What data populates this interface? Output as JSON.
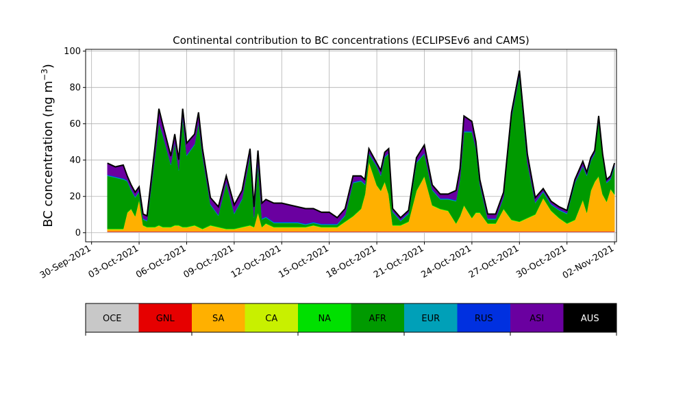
{
  "chart_data": {
    "type": "area",
    "title": "Continental contribution to BC concentrations (ECLIPSEv6 and CAMS)",
    "ylabel": "BC concentration (ng m",
    "ylabel_sup": "−3",
    "ylabel_close": ")",
    "ylim": [
      -5,
      101
    ],
    "yticks": [
      0,
      20,
      40,
      60,
      80,
      100
    ],
    "xlim": [
      "2021-09-29 15:00",
      "2021-11-02 03:00"
    ],
    "xticks": [
      "2021-09-30",
      "2021-10-03",
      "2021-10-06",
      "2021-10-09",
      "2021-10-12",
      "2021-10-15",
      "2021-10-18",
      "2021-10-21",
      "2021-10-24",
      "2021-10-27",
      "2021-10-30",
      "2021-11-02"
    ],
    "xtick_labels": [
      "30-Sep-2021",
      "03-Oct-2021",
      "06-Oct-2021",
      "09-Oct-2021",
      "12-Oct-2021",
      "15-Oct-2021",
      "18-Oct-2021",
      "21-Oct-2021",
      "24-Oct-2021",
      "27-Oct-2021",
      "30-Oct-2021",
      "02-Nov-2021"
    ],
    "grid": true,
    "stack_order": [
      "OCE",
      "GNL",
      "SA",
      "CA",
      "NA",
      "AFR",
      "EUR",
      "RUS",
      "ASI",
      "AUS"
    ],
    "colors": {
      "OCE": "#c8c8c8",
      "GNL": "#e60000",
      "SA": "#ffb000",
      "CA": "#c8f000",
      "NA": "#00e000",
      "AFR": "#009a00",
      "EUR": "#00a0b8",
      "RUS": "#0030e0",
      "ASI": "#6a00a0",
      "AUS": "#000000"
    },
    "x": [
      "2021-10-01",
      "2021-10-01 12:00",
      "2021-10-02",
      "2021-10-02 06:00",
      "2021-10-02 12:00",
      "2021-10-02 18:00",
      "2021-10-03",
      "2021-10-03 06:00",
      "2021-10-03 12:00",
      "2021-10-04",
      "2021-10-04 06:00",
      "2021-10-04 12:00",
      "2021-10-05",
      "2021-10-05 06:00",
      "2021-10-05 12:00",
      "2021-10-05 18:00",
      "2021-10-06",
      "2021-10-06 12:00",
      "2021-10-06 18:00",
      "2021-10-07",
      "2021-10-07 12:00",
      "2021-10-08",
      "2021-10-08 12:00",
      "2021-10-09",
      "2021-10-09 12:00",
      "2021-10-10",
      "2021-10-10 06:00",
      "2021-10-10 12:00",
      "2021-10-10 18:00",
      "2021-10-11",
      "2021-10-11 12:00",
      "2021-10-12",
      "2021-10-12 12:00",
      "2021-10-13",
      "2021-10-13 12:00",
      "2021-10-14",
      "2021-10-14 12:00",
      "2021-10-15",
      "2021-10-15 12:00",
      "2021-10-16",
      "2021-10-16 12:00",
      "2021-10-17",
      "2021-10-17 06:00",
      "2021-10-17 12:00",
      "2021-10-18",
      "2021-10-18 06:00",
      "2021-10-18 12:00",
      "2021-10-18 18:00",
      "2021-10-19",
      "2021-10-19 12:00",
      "2021-10-20",
      "2021-10-20 12:00",
      "2021-10-21",
      "2021-10-21 12:00",
      "2021-10-22",
      "2021-10-22 12:00",
      "2021-10-23",
      "2021-10-23 06:00",
      "2021-10-23 12:00",
      "2021-10-24",
      "2021-10-24 06:00",
      "2021-10-24 12:00",
      "2021-10-25",
      "2021-10-25 12:00",
      "2021-10-26",
      "2021-10-26 12:00",
      "2021-10-27",
      "2021-10-27 12:00",
      "2021-10-28",
      "2021-10-28 12:00",
      "2021-10-29",
      "2021-10-29 12:00",
      "2021-10-30",
      "2021-10-30 12:00",
      "2021-10-31",
      "2021-10-31 06:00",
      "2021-10-31 12:00",
      "2021-10-31 18:00",
      "2021-11-01",
      "2021-11-01 06:00",
      "2021-11-01 12:00",
      "2021-11-01 18:00",
      "2021-11-02"
    ],
    "series": [
      {
        "name": "OCE",
        "values": [
          0.5,
          0.5,
          0.5,
          0.5,
          0.5,
          0.5,
          0.5,
          0.5,
          0.5,
          0.5,
          0.5,
          0.5,
          0.5,
          0.5,
          0.5,
          0.5,
          0.5,
          0.5,
          0.5,
          0.5,
          0.5,
          0.5,
          0.5,
          0.5,
          0.5,
          0.5,
          0.5,
          0.5,
          0.5,
          0.5,
          0.5,
          0.5,
          0.5,
          0.5,
          0.5,
          0.5,
          0.5,
          0.5,
          0.5,
          0.5,
          0.5,
          0.5,
          0.5,
          0.5,
          0.5,
          0.5,
          0.5,
          0.5,
          0.5,
          0.5,
          0.5,
          0.5,
          0.5,
          0.5,
          0.5,
          0.5,
          0.5,
          0.5,
          0.5,
          0.5,
          0.5,
          0.5,
          0.5,
          0.5,
          0.5,
          0.5,
          0.5,
          0.5,
          0.5,
          0.5,
          0.5,
          0.5,
          0.5,
          0.5,
          0.5,
          0.5,
          0.5,
          0.5,
          0.5,
          0.5,
          0.5,
          0.5,
          0.5
        ]
      },
      {
        "name": "GNL",
        "values": [
          0.3,
          0.3,
          0.3,
          0.3,
          0.3,
          0.3,
          0.3,
          0.3,
          0.3,
          0.3,
          0.3,
          0.3,
          0.3,
          0.3,
          0.3,
          0.3,
          0.3,
          0.3,
          0.3,
          0.3,
          0.3,
          0.3,
          0.3,
          0.3,
          0.3,
          0.3,
          0.3,
          0.3,
          0.3,
          0.3,
          0.3,
          0.3,
          0.3,
          0.3,
          0.3,
          0.3,
          0.3,
          0.3,
          0.3,
          0.3,
          0.3,
          0.3,
          0.3,
          0.3,
          0.3,
          0.3,
          0.3,
          0.3,
          0.3,
          0.3,
          0.3,
          0.3,
          0.3,
          0.3,
          0.3,
          0.3,
          0.3,
          0.3,
          0.3,
          0.3,
          0.3,
          0.3,
          0.3,
          0.3,
          0.3,
          0.3,
          0.3,
          0.3,
          0.3,
          0.3,
          0.3,
          0.3,
          0.3,
          0.3,
          0.3,
          0.3,
          0.3,
          0.3,
          0.3,
          0.3,
          0.3,
          0.3,
          0.3
        ]
      },
      {
        "name": "SA",
        "values": [
          1,
          1,
          1,
          10,
          12,
          8,
          17,
          3,
          2,
          2,
          3,
          2,
          2,
          3,
          3,
          2,
          2,
          3,
          2,
          1,
          3,
          2,
          1,
          1,
          2,
          3,
          2,
          10,
          2,
          4,
          2,
          2,
          2,
          2,
          2,
          3,
          2,
          2,
          2,
          5,
          8,
          12,
          20,
          38,
          25,
          22,
          27,
          20,
          3,
          3,
          5,
          22,
          30,
          14,
          12,
          11,
          4,
          8,
          14,
          7,
          10,
          10,
          4,
          4,
          12,
          6,
          5,
          7,
          9,
          18,
          11,
          7,
          4,
          6,
          17,
          10,
          22,
          27,
          30,
          20,
          16,
          23,
          20
        ]
      },
      {
        "name": "CA",
        "values": [
          0.2,
          0.2,
          0.2,
          0.2,
          0.2,
          0.2,
          0.2,
          0.2,
          0.2,
          0.2,
          0.2,
          0.2,
          0.2,
          0.2,
          0.2,
          0.2,
          0.2,
          0.2,
          0.2,
          0.2,
          0.2,
          0.2,
          0.2,
          0.2,
          0.2,
          0.2,
          0.2,
          0.2,
          0.2,
          0.2,
          0.2,
          0.2,
          0.2,
          0.2,
          0.2,
          0.2,
          0.2,
          0.2,
          0.2,
          0.2,
          0.2,
          0.2,
          0.2,
          0.2,
          0.2,
          0.2,
          0.2,
          0.2,
          0.2,
          0.2,
          0.2,
          0.2,
          0.2,
          0.2,
          0.2,
          0.2,
          0.2,
          0.2,
          0.2,
          0.2,
          0.2,
          0.2,
          0.2,
          0.2,
          0.2,
          0.2,
          0.2,
          0.2,
          0.2,
          0.2,
          0.2,
          0.2,
          0.2,
          0.2,
          0.2,
          0.2,
          0.2,
          0.2,
          0.2,
          0.2,
          0.2,
          0.2,
          0.2
        ]
      },
      {
        "name": "NA",
        "values": [
          0.3,
          0.3,
          0.3,
          0.3,
          0.3,
          0.3,
          0.3,
          0.3,
          0.3,
          0.3,
          0.3,
          0.3,
          0.3,
          0.3,
          0.3,
          0.3,
          0.3,
          0.3,
          0.3,
          0.3,
          0.3,
          0.3,
          0.3,
          0.3,
          0.3,
          0.3,
          0.3,
          0.3,
          0.3,
          0.3,
          0.3,
          0.3,
          0.3,
          0.3,
          0.3,
          0.3,
          0.3,
          0.3,
          0.3,
          0.3,
          0.3,
          0.3,
          0.3,
          0.3,
          0.3,
          0.3,
          0.3,
          0.3,
          0.3,
          0.3,
          0.3,
          0.3,
          0.3,
          0.3,
          0.3,
          0.3,
          0.3,
          0.3,
          0.3,
          0.3,
          0.3,
          0.3,
          0.3,
          0.3,
          0.3,
          0.3,
          0.3,
          0.3,
          0.3,
          0.3,
          0.3,
          0.3,
          0.3,
          0.3,
          0.3,
          0.3,
          0.3,
          0.3,
          0.3,
          0.3,
          0.3,
          0.3,
          0.3
        ]
      },
      {
        "name": "AFR",
        "values": [
          29,
          28,
          27,
          17,
          10,
          10,
          4,
          3,
          3,
          38,
          56,
          50,
          34,
          45,
          30,
          60,
          39,
          44,
          57,
          40,
          11,
          6,
          25,
          8,
          15,
          38,
          5,
          27,
          4,
          3,
          2,
          2,
          2,
          2,
          1,
          1,
          1,
          1,
          1,
          3,
          18,
          15,
          5,
          4,
          10,
          8,
          13,
          22,
          7,
          2,
          4,
          15,
          12,
          8,
          5,
          6,
          12,
          20,
          40,
          47,
          35,
          15,
          2,
          2,
          6,
          56,
          80,
          30,
          6,
          3,
          3,
          4,
          5,
          20,
          18,
          20,
          16,
          15,
          30,
          20,
          10,
          5,
          15
        ]
      },
      {
        "name": "EUR",
        "values": [
          0.4,
          0.4,
          0.4,
          0.4,
          0.4,
          0.4,
          0.4,
          0.4,
          0.4,
          0.4,
          0.4,
          0.4,
          0.4,
          0.4,
          0.4,
          0.4,
          0.4,
          0.4,
          0.4,
          0.4,
          0.4,
          0.4,
          0.4,
          0.4,
          0.4,
          0.4,
          0.4,
          0.4,
          0.4,
          0.4,
          0.4,
          0.4,
          0.4,
          0.4,
          0.4,
          0.4,
          0.4,
          0.4,
          0.4,
          0.4,
          0.4,
          0.4,
          0.4,
          0.4,
          0.4,
          0.4,
          0.4,
          0.4,
          0.4,
          0.4,
          0.4,
          0.4,
          0.4,
          0.4,
          0.4,
          0.4,
          0.4,
          0.4,
          0.4,
          0.4,
          0.4,
          0.4,
          0.4,
          0.4,
          0.4,
          0.4,
          0.4,
          0.4,
          0.4,
          0.4,
          0.4,
          0.4,
          0.4,
          0.4,
          0.4,
          0.4,
          0.4,
          0.4,
          0.4,
          0.4,
          0.4,
          0.4,
          0.4
        ]
      },
      {
        "name": "RUS",
        "values": [
          0.3,
          0.3,
          0.3,
          0.3,
          0.3,
          0.3,
          0.3,
          0.3,
          0.3,
          0.3,
          0.3,
          0.3,
          0.3,
          0.3,
          0.3,
          0.3,
          0.3,
          0.3,
          0.3,
          0.3,
          0.3,
          0.3,
          0.3,
          0.3,
          0.3,
          0.3,
          0.3,
          0.3,
          0.3,
          0.3,
          0.3,
          0.3,
          0.3,
          0.3,
          0.3,
          0.3,
          0.3,
          0.3,
          0.3,
          0.3,
          0.3,
          0.3,
          0.3,
          0.3,
          0.3,
          0.3,
          0.3,
          0.3,
          0.3,
          0.3,
          0.3,
          0.3,
          0.3,
          0.3,
          0.3,
          0.3,
          0.3,
          0.3,
          0.3,
          0.3,
          0.3,
          0.3,
          0.3,
          0.3,
          0.3,
          0.3,
          0.3,
          0.3,
          0.3,
          0.3,
          0.3,
          0.3,
          0.3,
          0.3,
          0.3,
          0.3,
          0.3,
          0.3,
          0.3,
          0.3,
          0.3,
          0.3,
          0.3
        ]
      },
      {
        "name": "ASI",
        "values": [
          6,
          5,
          7,
          2,
          2,
          2,
          2,
          2,
          2,
          5,
          7,
          5,
          4,
          4,
          5,
          4,
          6,
          5,
          5,
          3,
          3,
          4,
          3,
          4,
          4,
          3,
          5,
          6,
          8,
          9,
          10,
          10,
          9,
          8,
          8,
          7,
          6,
          6,
          3,
          3,
          3,
          2,
          2,
          2,
          1,
          2,
          2,
          2,
          1,
          1,
          1,
          2,
          4,
          2,
          2,
          2,
          5,
          5,
          8,
          5,
          3,
          2,
          2,
          2,
          2,
          2,
          2,
          4,
          2,
          1,
          1,
          1,
          1,
          1,
          2,
          1,
          1,
          1,
          2,
          1,
          1,
          1,
          1
        ]
      },
      {
        "name": "AUS",
        "values": [
          0.3,
          0.3,
          0.3,
          0.3,
          0.3,
          0.3,
          0.3,
          0.3,
          0.3,
          0.3,
          0.3,
          0.3,
          0.3,
          0.3,
          0.3,
          0.3,
          0.3,
          0.3,
          0.3,
          0.3,
          0.3,
          0.3,
          0.3,
          0.3,
          0.3,
          0.3,
          0.3,
          0.3,
          0.3,
          0.3,
          0.3,
          0.3,
          0.3,
          0.3,
          0.3,
          0.3,
          0.3,
          0.3,
          0.3,
          0.3,
          0.3,
          0.3,
          0.3,
          0.3,
          0.3,
          0.3,
          0.3,
          0.3,
          0.3,
          0.3,
          0.3,
          0.3,
          0.3,
          0.3,
          0.3,
          0.3,
          0.3,
          0.3,
          0.3,
          0.3,
          0.3,
          0.3,
          0.3,
          0.3,
          0.3,
          0.3,
          0.3,
          0.3,
          0.3,
          0.3,
          0.3,
          0.3,
          0.3,
          0.3,
          0.3,
          0.3,
          0.3,
          0.3,
          0.3,
          0.3,
          0.3,
          0.3,
          0.3
        ]
      }
    ]
  },
  "legend": {
    "entries": [
      "OCE",
      "GNL",
      "SA",
      "CA",
      "NA",
      "AFR",
      "EUR",
      "RUS",
      "ASI",
      "AUS"
    ]
  }
}
